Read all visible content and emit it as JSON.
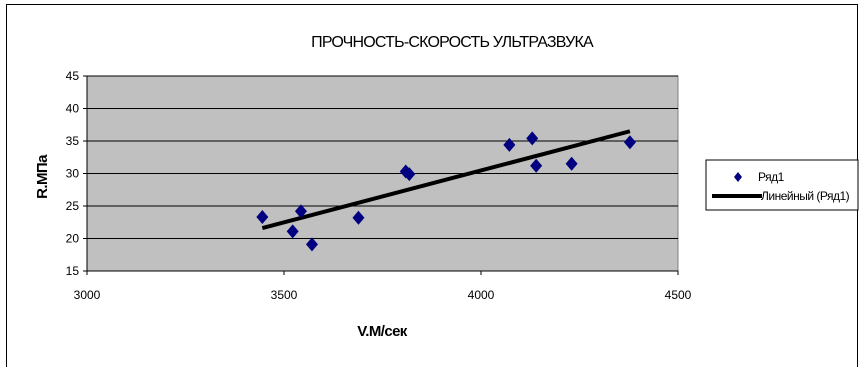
{
  "chart_data": {
    "type": "scatter",
    "title": "ПРОЧНОСТЬ-СКОРОСТЬ УЛЬТРАЗВУКА",
    "xlabel": "V.М/сек",
    "ylabel": "R.МПа",
    "xlim": [
      3000,
      4500
    ],
    "ylim": [
      15,
      45
    ],
    "xticks": [
      3000,
      3500,
      4000,
      4500
    ],
    "yticks": [
      15,
      20,
      25,
      30,
      35,
      40,
      45
    ],
    "grid": "horizontal",
    "legend_position": "right",
    "plot_background": "#c0c0c0",
    "series": [
      {
        "name": "Ряд1",
        "marker": "diamond",
        "color": "#000080",
        "points": [
          {
            "x": 3445,
            "y": 23.3
          },
          {
            "x": 3522,
            "y": 21.1
          },
          {
            "x": 3543,
            "y": 24.2
          },
          {
            "x": 3571,
            "y": 19.1
          },
          {
            "x": 3689,
            "y": 23.2
          },
          {
            "x": 3809,
            "y": 30.3
          },
          {
            "x": 3818,
            "y": 29.9
          },
          {
            "x": 4072,
            "y": 34.4
          },
          {
            "x": 4130,
            "y": 35.4
          },
          {
            "x": 4140,
            "y": 31.2
          },
          {
            "x": 4230,
            "y": 31.5
          },
          {
            "x": 4378,
            "y": 34.8
          }
        ]
      }
    ],
    "trendline": {
      "name": "Линейный (Ряд1)",
      "type": "linear",
      "color": "#000000",
      "start": {
        "x": 3445,
        "y": 21.6
      },
      "end": {
        "x": 4378,
        "y": 36.5
      }
    }
  }
}
